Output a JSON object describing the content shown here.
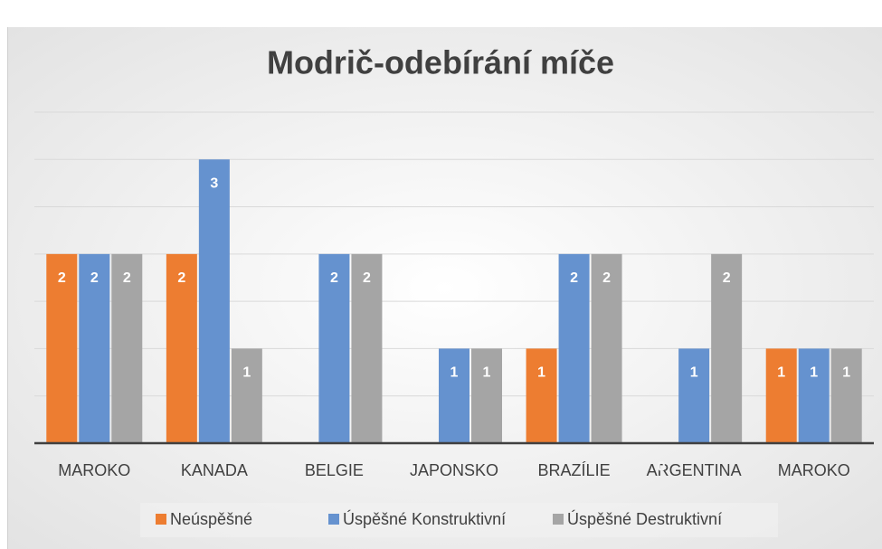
{
  "chart_data": {
    "type": "bar",
    "title": "Modrič-odebírání míče",
    "categories": [
      "MAROKO",
      "KANADA",
      "BELGIE",
      "JAPONSKO",
      "BRAZÍLIE",
      "ARGENTINA",
      "MAROKO"
    ],
    "series": [
      {
        "name": "Neúspěšné",
        "color": "#ed7d31",
        "values": [
          2,
          2,
          null,
          null,
          1,
          0,
          1
        ]
      },
      {
        "name": "Úspěšné Konstruktivní",
        "color": "#6592cf",
        "values": [
          2,
          3,
          2,
          1,
          2,
          1,
          1
        ]
      },
      {
        "name": "Úspěšné Destruktivní",
        "color": "#a5a5a5",
        "values": [
          2,
          1,
          2,
          1,
          2,
          2,
          1
        ]
      }
    ],
    "ylim": [
      0,
      3.5
    ],
    "yticks": [
      0,
      0.5,
      1,
      1.5,
      2,
      2.5,
      3,
      3.5
    ],
    "grid": true,
    "legend": "bottom"
  }
}
